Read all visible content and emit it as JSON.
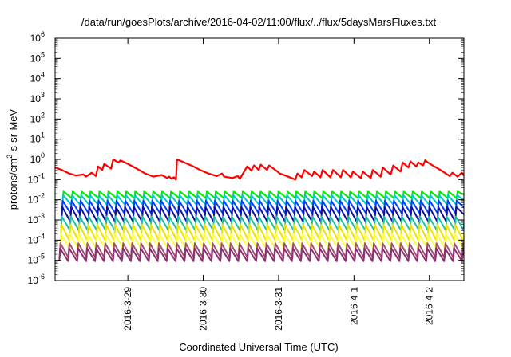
{
  "chart_data": {
    "type": "line",
    "title": "/data/run/goesPlots/archive/2016-04-02/11:00/flux/../flux/5daysMarsFluxes.txt",
    "xlabel": "Coordinated Universal Time (UTC)",
    "ylabel_parts": [
      "protons/cm",
      "2",
      "-s-sr-MeV"
    ],
    "y_scale": "log",
    "ylim": [
      1e-06,
      1000000
    ],
    "y_ticks": [
      {
        "base": "10",
        "exp": "6",
        "value": 1000000
      },
      {
        "base": "10",
        "exp": "5",
        "value": 100000
      },
      {
        "base": "10",
        "exp": "4",
        "value": 10000
      },
      {
        "base": "10",
        "exp": "3",
        "value": 1000
      },
      {
        "base": "10",
        "exp": "2",
        "value": 100
      },
      {
        "base": "10",
        "exp": "1",
        "value": 10
      },
      {
        "base": "10",
        "exp": "0",
        "value": 1
      },
      {
        "base": "10",
        "exp": "-1",
        "value": 0.1
      },
      {
        "base": "10",
        "exp": "-2",
        "value": 0.01
      },
      {
        "base": "10",
        "exp": "-3",
        "value": 0.001
      },
      {
        "base": "10",
        "exp": "-4",
        "value": 0.0001
      },
      {
        "base": "10",
        "exp": "-5",
        "value": 1e-05
      },
      {
        "base": "10",
        "exp": "-6",
        "value": 1e-06
      }
    ],
    "xlim": [
      "2016-03-28 00:50",
      "2016-04-02 11:00"
    ],
    "x_ticks": [
      {
        "label": "2016-3-29",
        "value": "2016-03-29 00:00"
      },
      {
        "label": "2016-3-30",
        "value": "2016-03-30 00:00"
      },
      {
        "label": "2016-3-31",
        "value": "2016-03-31 00:00"
      },
      {
        "label": "2016-4-1",
        "value": "2016-04-01 00:00"
      },
      {
        "label": "2016-4-2",
        "value": "2016-04-02 00:00"
      }
    ],
    "grid": false,
    "legend": "none",
    "series": [
      {
        "color": "#ff0000",
        "x": [
          "2016-03-28 00:50",
          "2016-03-28 03:00",
          "2016-03-28 05:20",
          "2016-03-28 07:30",
          "2016-03-28 09:50",
          "2016-03-28 10:40",
          "2016-03-28 12:30",
          "2016-03-28 13:50",
          "2016-03-28 14:30",
          "2016-03-28 15:50",
          "2016-03-28 16:30",
          "2016-03-28 18:40",
          "2016-03-28 19:20",
          "2016-03-28 21:00",
          "2016-03-28 21:40",
          "2016-03-29 00:00",
          "2016-03-29 02:50",
          "2016-03-29 05:30",
          "2016-03-29 08:10",
          "2016-03-29 10:50",
          "2016-03-29 12:30",
          "2016-03-29 13:10",
          "2016-03-29 14:00",
          "2016-03-29 14:40",
          "2016-03-29 15:20",
          "2016-03-29 15:40",
          "2016-03-29 18:00",
          "2016-03-29 20:50",
          "2016-03-29 23:00",
          "2016-03-30 01:40",
          "2016-03-30 04:20",
          "2016-03-30 06:00",
          "2016-03-30 06:40",
          "2016-03-30 09:20",
          "2016-03-30 11:00",
          "2016-03-30 11:40",
          "2016-03-30 14:00",
          "2016-03-30 15:20",
          "2016-03-30 16:10",
          "2016-03-30 17:40",
          "2016-03-30 18:20",
          "2016-03-30 20:20",
          "2016-03-30 21:00",
          "2016-03-30 23:40",
          "2016-03-31 00:20",
          "2016-03-31 02:10",
          "2016-03-31 05:20",
          "2016-03-31 06:00",
          "2016-03-31 07:20",
          "2016-03-31 08:10",
          "2016-03-31 10:40",
          "2016-03-31 11:20",
          "2016-03-31 13:20",
          "2016-03-31 14:00",
          "2016-03-31 16:30",
          "2016-03-31 17:20",
          "2016-03-31 19:50",
          "2016-03-31 20:30",
          "2016-03-31 23:00",
          "2016-03-31 23:40",
          "2016-04-01 02:10",
          "2016-04-01 02:50",
          "2016-04-01 05:20",
          "2016-04-01 06:00",
          "2016-04-01 08:30",
          "2016-04-01 09:10",
          "2016-04-01 11:40",
          "2016-04-01 12:30",
          "2016-04-01 14:50",
          "2016-04-01 15:30",
          "2016-04-01 17:20",
          "2016-04-01 18:00",
          "2016-04-01 19:50",
          "2016-04-01 20:30",
          "2016-04-01 22:00",
          "2016-04-01 22:40",
          "2016-04-02 00:10",
          "2016-04-02 03:30",
          "2016-04-02 06:30",
          "2016-04-02 07:20",
          "2016-04-02 09:00",
          "2016-04-02 10:20",
          "2016-04-02 11:00"
        ],
        "y": [
          0.4,
          0.3,
          0.2,
          0.16,
          0.18,
          0.14,
          0.22,
          0.15,
          0.45,
          0.3,
          0.6,
          0.35,
          1.0,
          0.7,
          0.9,
          0.6,
          0.35,
          0.2,
          0.14,
          0.17,
          0.12,
          0.14,
          0.11,
          0.13,
          0.1,
          1.0,
          0.7,
          0.45,
          0.3,
          0.2,
          0.15,
          0.2,
          0.14,
          0.12,
          0.15,
          0.11,
          0.45,
          0.28,
          0.5,
          0.3,
          0.55,
          0.3,
          0.5,
          0.25,
          0.2,
          0.16,
          0.1,
          0.2,
          0.13,
          0.3,
          0.15,
          0.25,
          0.13,
          0.3,
          0.13,
          0.3,
          0.13,
          0.3,
          0.13,
          0.25,
          0.12,
          0.25,
          0.12,
          0.3,
          0.14,
          0.4,
          0.18,
          0.5,
          0.25,
          0.7,
          0.4,
          0.8,
          0.45,
          0.7,
          0.5,
          0.9,
          0.6,
          0.3,
          0.15,
          0.22,
          0.14,
          0.22,
          0.16
        ]
      },
      {
        "color": "#00ee00",
        "period_hours": 2.85,
        "y_max": 0.026,
        "y_min": 0.012
      },
      {
        "color": "#00c8c8",
        "period_hours": 2.85,
        "y_max": 0.017,
        "y_min": 0.0055
      },
      {
        "color": "#0040ff",
        "period_hours": 2.85,
        "y_max": 0.009,
        "y_min": 0.002
      },
      {
        "color": "#1010a0",
        "period_hours": 2.85,
        "y_max": 0.0045,
        "y_min": 0.0008
      },
      {
        "color": "#20c0a0",
        "period_hours": 2.85,
        "y_max": 0.0015,
        "y_min": 0.0003
      },
      {
        "color": "#f0e000",
        "period_hours": 2.85,
        "y_max": 0.0006,
        "y_min": 9e-05
      },
      {
        "color": "#ffff40",
        "period_hours": 2.85,
        "y_max": 0.0002,
        "y_min": 4e-05
      },
      {
        "color": "#a05070",
        "period_hours": 2.85,
        "y_max": 7e-05,
        "y_min": 1.3e-05
      },
      {
        "color": "#903070",
        "period_hours": 2.85,
        "y_max": 4e-05,
        "y_min": 9e-06
      }
    ]
  }
}
